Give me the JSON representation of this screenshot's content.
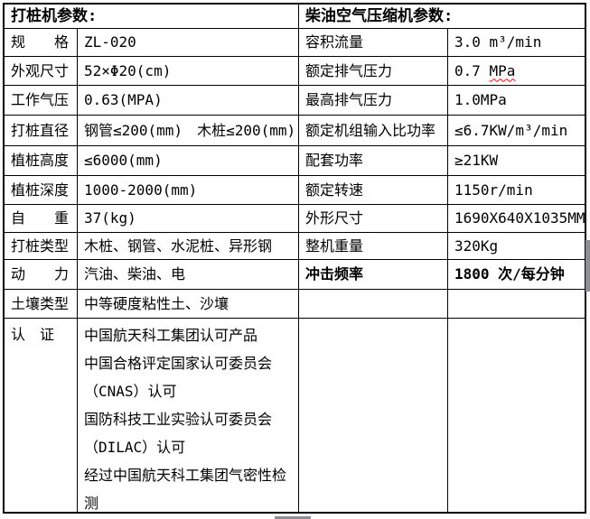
{
  "left": {
    "header": "打桩机参数:",
    "rows": [
      {
        "label": "规　　格",
        "value": "ZL-020"
      },
      {
        "label": "外观尺寸",
        "value": "52×Φ20(cm)"
      },
      {
        "label": "工作气压",
        "value": "0.63(MPA)"
      },
      {
        "label": "打桩直径",
        "value": "钢管≤200(mm)　木桩≤200(mm)"
      },
      {
        "label": "植桩高度",
        "value": "≤6000(mm)"
      },
      {
        "label": "植桩深度",
        "value": "1000-2000(mm)"
      },
      {
        "label": "自　　重",
        "value": "37(kg)"
      },
      {
        "label": "打桩类型",
        "value": "木桩、钢管、水泥桩、异形钢"
      },
      {
        "label": "动　　力",
        "value": "汽油、柴油、电"
      },
      {
        "label": "土壤类型",
        "value": "中等硬度粘性土、沙壤"
      },
      {
        "label": "认　证",
        "lines": [
          "中国航天科工集团认可产品",
          "中国合格评定国家认可委员会",
          "（CNAS）认可",
          "国防科技工业实验认可委员会",
          "（DILAC）认可",
          "经过中国航天科工集团气密性检",
          "测"
        ]
      }
    ]
  },
  "right": {
    "header": "柴油空气压缩机参数:",
    "rows": [
      {
        "label": "容积流量",
        "value": "3.0 m³/min"
      },
      {
        "label": "额定排气压力",
        "value_prefix": "0.7 ",
        "value_flagged": "MPa"
      },
      {
        "label": "最高排气压力",
        "value": "1.0MPa"
      },
      {
        "label": "额定机组输入比功率",
        "value": "≤6.7KW/m³/min"
      },
      {
        "label": "配套功率",
        "value": "≥21KW"
      },
      {
        "label": "额定转速",
        "value": "1150r/min"
      },
      {
        "label": "外形尺寸",
        "value": "1690X640X1035MM"
      },
      {
        "label": "整机重量",
        "value": "320Kg"
      },
      {
        "label": "冲击频率",
        "value": "1800 次/每分钟"
      }
    ]
  },
  "colors": {
    "table_border": "#000000",
    "text": "#000000",
    "spellcheck_underline": "#ff0000",
    "scrollbar_thumb": "#8c9094",
    "background": "#ffffff"
  }
}
